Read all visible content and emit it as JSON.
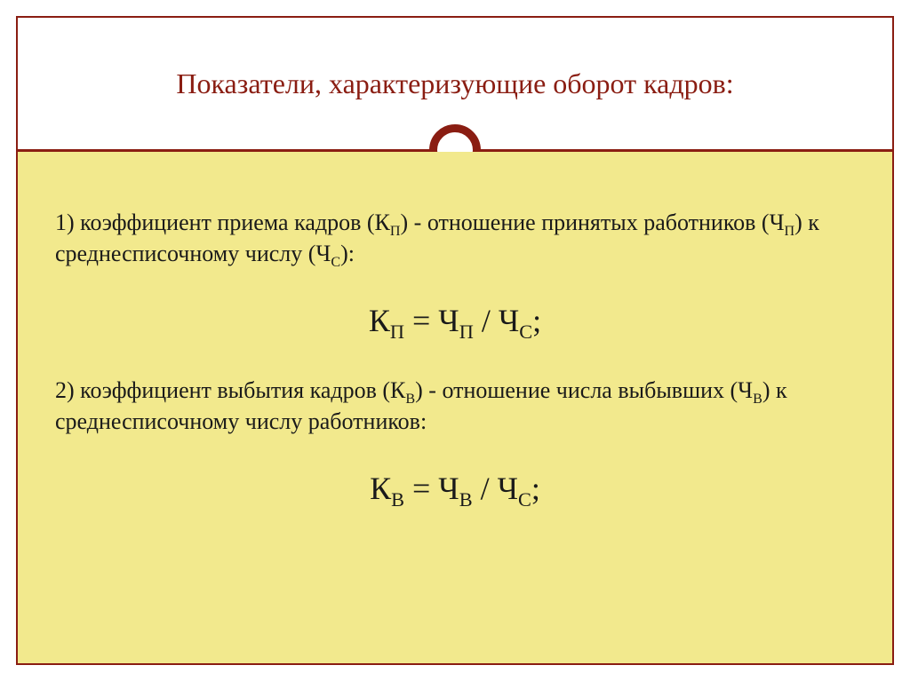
{
  "slide": {
    "title": "Показатели, характеризующие оборот кадров:",
    "colors": {
      "accent": "#8a1d12",
      "content_bg": "#f2e98d",
      "page_bg": "#ffffff",
      "text": "#1a1a1a"
    },
    "typography": {
      "title_fontsize": 32,
      "body_fontsize": 26,
      "formula_fontsize": 36,
      "font_family": "Georgia, Times New Roman, serif"
    },
    "items": [
      {
        "num": "1)",
        "text_html": "коэффициент приема кадров (К<sub>П</sub>) - отношение принятых работников (Ч<sub>П</sub>) к среднесписочному числу (Ч<sub>С</sub>):",
        "formula_html": "К<sub>П</sub> = Ч<sub>П</sub> / Ч<sub>С</sub>;"
      },
      {
        "num": "2)",
        "text_html": "коэффициент выбытия кадров (К<sub>В</sub>) - отношение числа выбывших (Ч<sub>В</sub>) к среднесписочному числу работников:",
        "formula_html": "К<sub>В</sub> = Ч<sub>В</sub> / Ч<sub>С</sub>;"
      }
    ]
  }
}
